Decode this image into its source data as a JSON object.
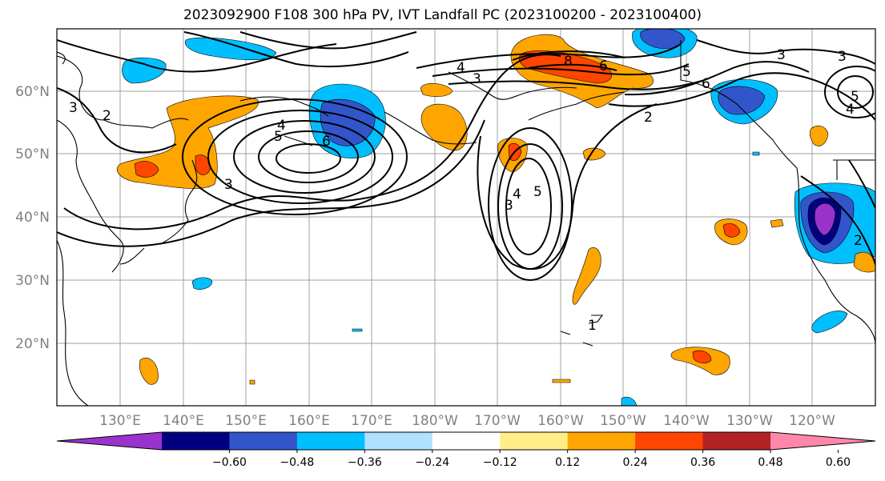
{
  "title": "2023092900 F108 300 hPa PV, IVT Landfall PC (2023100200 - 2023100400)",
  "map": {
    "lat_labels": [
      "60°N",
      "50°N",
      "40°N",
      "30°N",
      "20°N"
    ],
    "lon_labels": [
      "130°E",
      "140°E",
      "150°E",
      "160°E",
      "170°E",
      "180°W",
      "170°W",
      "160°W",
      "150°W",
      "140°W",
      "130°W",
      "120°W"
    ],
    "contour_labels": [
      "2",
      "3",
      "4",
      "5",
      "6",
      "3",
      "4",
      "5",
      "3",
      "4",
      "8",
      "6",
      "5",
      "6",
      "2",
      "3",
      "3",
      "5",
      "4",
      "2",
      "3",
      "1"
    ]
  },
  "colorbar": {
    "colors": [
      "#9933cc",
      "#000080",
      "#3355cc",
      "#00bfff",
      "#b0e2ff",
      "#ffffff",
      "#ffee88",
      "#ffa500",
      "#ff4500",
      "#b22222",
      "#ff88aa"
    ],
    "tick_labels": [
      "−0.60",
      "−0.48",
      "−0.36",
      "−0.24",
      "−0.12",
      "0.12",
      "0.24",
      "0.36",
      "0.48",
      "0.60"
    ]
  },
  "colors": {
    "coast": "#000000",
    "grid": "#a0a0a0",
    "contour": "#000000"
  }
}
